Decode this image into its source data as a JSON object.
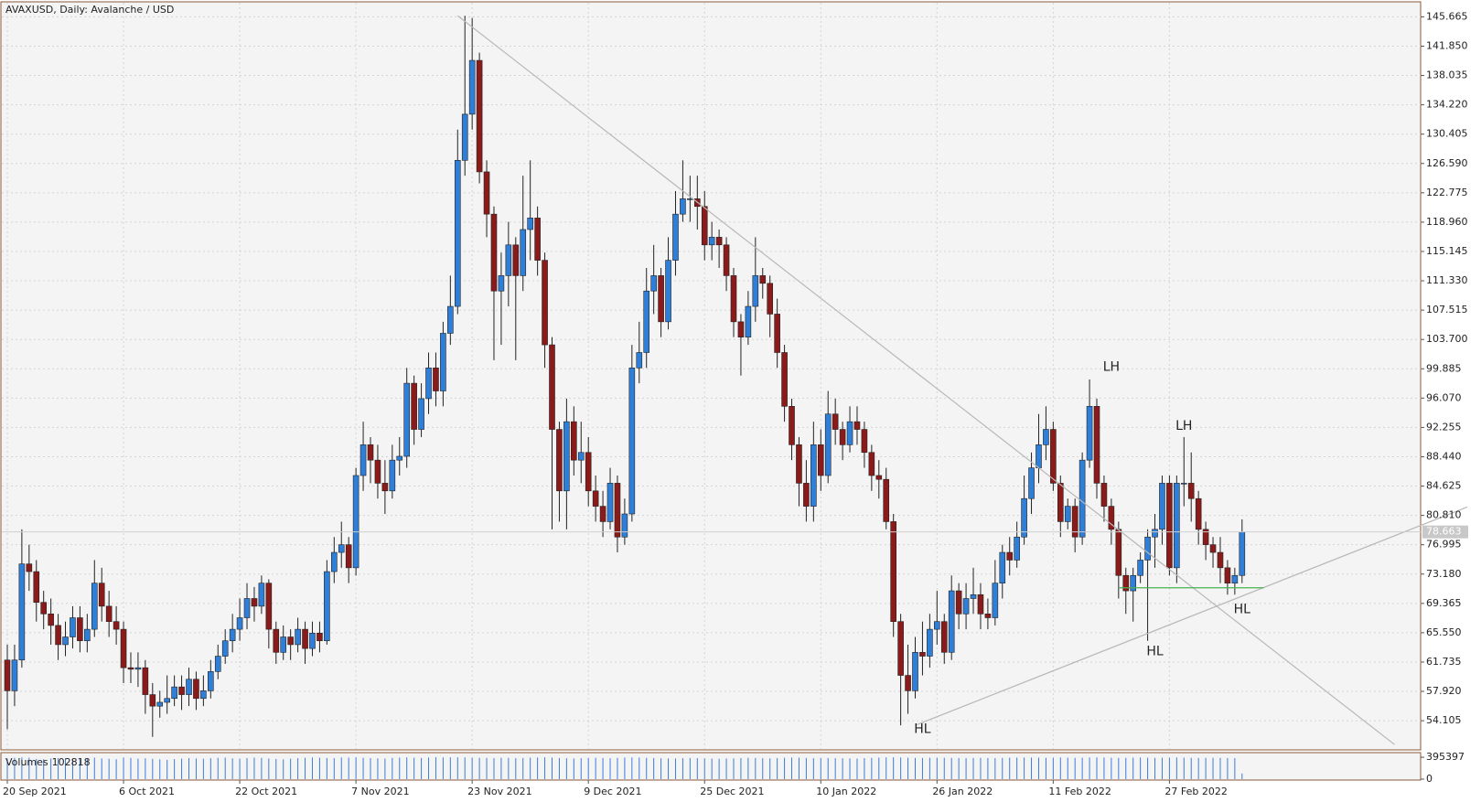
{
  "chart_data": {
    "type": "candlestick",
    "title": "AVAXUSD, Daily:  Avalanche / USD",
    "x": [
      "2021-09-20",
      "2021-09-21",
      "2021-09-22",
      "2021-09-23",
      "2021-09-24",
      "2021-09-25",
      "2021-09-26",
      "2021-09-27",
      "2021-09-28",
      "2021-09-29",
      "2021-09-30",
      "2021-10-01",
      "2021-10-02",
      "2021-10-03",
      "2021-10-04",
      "2021-10-05",
      "2021-10-06",
      "2021-10-07",
      "2021-10-08",
      "2021-10-09",
      "2021-10-10",
      "2021-10-11",
      "2021-10-12",
      "2021-10-13",
      "2021-10-14",
      "2021-10-15",
      "2021-10-16",
      "2021-10-17",
      "2021-10-18",
      "2021-10-19",
      "2021-10-20",
      "2021-10-21",
      "2021-10-22",
      "2021-10-23",
      "2021-10-24",
      "2021-10-25",
      "2021-10-26",
      "2021-10-27",
      "2021-10-28",
      "2021-10-29",
      "2021-10-30",
      "2021-10-31",
      "2021-11-01",
      "2021-11-02",
      "2021-11-03",
      "2021-11-04",
      "2021-11-05",
      "2021-11-06",
      "2021-11-07",
      "2021-11-08",
      "2021-11-09",
      "2021-11-10",
      "2021-11-11",
      "2021-11-12",
      "2021-11-13",
      "2021-11-14",
      "2021-11-15",
      "2021-11-16",
      "2021-11-17",
      "2021-11-18",
      "2021-11-19",
      "2021-11-20",
      "2021-11-21",
      "2021-11-22",
      "2021-11-23",
      "2021-11-24",
      "2021-11-25",
      "2021-11-26",
      "2021-11-27",
      "2021-11-28",
      "2021-11-29",
      "2021-11-30",
      "2021-12-01",
      "2021-12-02",
      "2021-12-03",
      "2021-12-04",
      "2021-12-05",
      "2021-12-06",
      "2021-12-07",
      "2021-12-08",
      "2021-12-09",
      "2021-12-10",
      "2021-12-11",
      "2021-12-12",
      "2021-12-13",
      "2021-12-14",
      "2021-12-15",
      "2021-12-16",
      "2021-12-17",
      "2021-12-18",
      "2021-12-19",
      "2021-12-20",
      "2021-12-21",
      "2021-12-22",
      "2021-12-23",
      "2021-12-24",
      "2021-12-25",
      "2021-12-26",
      "2021-12-27",
      "2021-12-28",
      "2021-12-29",
      "2021-12-30",
      "2021-12-31",
      "2022-01-01",
      "2022-01-02",
      "2022-01-03",
      "2022-01-04",
      "2022-01-05",
      "2022-01-06",
      "2022-01-07",
      "2022-01-08",
      "2022-01-09",
      "2022-01-10",
      "2022-01-11",
      "2022-01-12",
      "2022-01-13",
      "2022-01-14",
      "2022-01-15",
      "2022-01-16",
      "2022-01-17",
      "2022-01-18",
      "2022-01-19",
      "2022-01-20",
      "2022-01-21",
      "2022-01-22",
      "2022-01-23",
      "2022-01-24",
      "2022-01-25",
      "2022-01-26",
      "2022-01-27",
      "2022-01-28",
      "2022-01-29",
      "2022-01-30",
      "2022-01-31",
      "2022-02-01",
      "2022-02-02",
      "2022-02-03",
      "2022-02-04",
      "2022-02-05",
      "2022-02-06",
      "2022-02-07",
      "2022-02-08",
      "2022-02-09",
      "2022-02-10",
      "2022-02-11",
      "2022-02-12",
      "2022-02-13",
      "2022-02-14",
      "2022-02-15",
      "2022-02-16",
      "2022-02-17",
      "2022-02-18",
      "2022-02-19",
      "2022-02-20",
      "2022-02-21",
      "2022-02-22",
      "2022-02-23",
      "2022-02-24",
      "2022-02-25",
      "2022-02-26",
      "2022-02-27",
      "2022-02-28",
      "2022-03-01",
      "2022-03-02",
      "2022-03-03",
      "2022-03-04",
      "2022-03-05",
      "2022-03-06",
      "2022-03-07",
      "2022-03-08",
      "2022-03-09"
    ],
    "open": [
      62,
      58,
      62,
      74.5,
      73.5,
      69.5,
      68,
      66.5,
      64,
      65,
      67.5,
      64.5,
      66,
      72,
      69,
      67,
      66,
      61,
      60.8,
      61,
      57.5,
      56,
      56.5,
      57,
      58.5,
      57.5,
      59.5,
      57,
      58,
      60.5,
      62.5,
      64.5,
      66,
      67.5,
      70,
      69,
      72,
      66,
      63,
      65,
      64,
      66,
      63.5,
      65.5,
      64.5,
      73.5,
      76,
      77,
      74,
      86,
      90,
      88,
      85,
      84,
      88,
      88.5,
      98,
      92,
      96,
      100,
      97,
      104.5,
      108,
      127,
      133,
      140,
      125.5,
      120,
      110,
      112,
      116,
      112,
      118,
      119.5,
      114,
      103,
      92,
      84,
      93,
      88,
      89,
      84,
      82,
      80,
      85,
      78,
      81,
      100,
      102,
      110,
      112,
      106,
      114,
      120,
      122,
      122,
      121,
      116,
      117,
      116,
      112,
      106,
      104,
      108,
      112,
      111,
      107,
      102,
      95,
      90,
      85,
      82,
      90,
      86,
      94,
      92,
      90,
      93,
      92,
      89,
      86,
      85.5,
      80,
      67,
      60,
      58,
      63,
      62.5,
      66,
      67,
      63,
      71,
      68,
      70,
      70.5,
      68,
      67.5,
      72,
      76,
      75,
      78,
      83,
      87,
      90,
      92,
      85,
      80,
      82,
      78,
      88,
      95,
      85,
      82,
      79,
      73,
      71,
      73,
      75,
      78,
      79,
      85,
      74,
      85,
      85,
      83,
      79,
      77,
      76,
      74,
      72,
      73
    ],
    "high": [
      64,
      64,
      79,
      77,
      75,
      71,
      70,
      68,
      67,
      69,
      69,
      68,
      75,
      74,
      71,
      69,
      67,
      63,
      63,
      62,
      59,
      58,
      60,
      60,
      60,
      61,
      60.5,
      60,
      62,
      64,
      66,
      68,
      70,
      72,
      71.5,
      73,
      72.5,
      67,
      66.5,
      66,
      67.5,
      67,
      67,
      67,
      75,
      78,
      80,
      78,
      87,
      93,
      91,
      90,
      88,
      90,
      91,
      100,
      99,
      98,
      102,
      102,
      106,
      112,
      131,
      145.8,
      145.5,
      141,
      127,
      121,
      115,
      119,
      117,
      125,
      127,
      121,
      115,
      104,
      93,
      96,
      95,
      93,
      91,
      86,
      84,
      87,
      86,
      83,
      103,
      106,
      113,
      116,
      113,
      117,
      123,
      127,
      125,
      125,
      123,
      119,
      118,
      117,
      113,
      107,
      110,
      117,
      113,
      112,
      109,
      103,
      96,
      91,
      88,
      93,
      92,
      97,
      96,
      93,
      95,
      95,
      93,
      90,
      88,
      87,
      81,
      68,
      64,
      65,
      67,
      68,
      71,
      68,
      73,
      72,
      72,
      74,
      72,
      70,
      75,
      77,
      78,
      80,
      86,
      89,
      94,
      95,
      93,
      86,
      83,
      83,
      89,
      98.5,
      96,
      86,
      83,
      80,
      74,
      74,
      76,
      79,
      81,
      86,
      86,
      86,
      91,
      89,
      84,
      80,
      78,
      78,
      75,
      74,
      80.3
    ],
    "low": [
      53,
      56,
      61,
      71,
      67,
      66,
      64,
      62,
      62.5,
      63.5,
      63,
      63,
      65,
      67,
      65,
      64,
      59,
      59,
      58.5,
      55,
      52,
      54.5,
      55,
      56,
      55.5,
      56,
      55.5,
      56,
      57,
      59.5,
      61.5,
      63,
      64.5,
      66,
      67,
      68,
      63.5,
      61.5,
      62,
      62,
      63,
      61.5,
      62.5,
      63,
      64,
      72,
      74,
      72,
      73,
      84,
      85,
      83,
      81,
      83,
      86,
      87,
      90,
      91,
      94,
      95,
      95,
      103,
      107,
      125,
      131,
      124,
      117,
      101,
      103,
      108,
      101,
      110,
      114,
      112,
      100,
      79,
      80,
      79,
      86,
      85,
      82,
      80,
      78,
      79,
      76,
      77,
      80,
      98,
      100,
      107,
      104,
      105,
      112,
      119,
      119,
      118,
      114,
      114,
      113,
      110,
      104,
      99,
      103,
      106,
      109,
      104,
      100,
      93,
      88,
      82,
      80,
      80,
      84,
      85,
      90,
      88,
      89,
      90,
      87,
      84,
      83,
      79,
      65,
      53.5,
      55,
      57,
      60,
      61,
      64,
      61.5,
      62,
      66,
      66,
      68,
      66,
      66,
      66.5,
      70,
      73,
      74,
      77,
      81,
      85,
      88,
      84,
      78,
      79,
      76,
      77,
      87,
      83,
      80,
      77,
      70,
      68,
      67,
      72,
      64.5,
      74,
      77,
      73,
      72,
      82,
      80,
      77,
      75,
      74,
      72,
      70.5,
      70.5,
      72
    ],
    "close": [
      58,
      62,
      74.5,
      73.5,
      69.5,
      68,
      66.5,
      64,
      65,
      67.5,
      64.5,
      66,
      72,
      69,
      67,
      66,
      61,
      60.8,
      61,
      57.5,
      56,
      56.5,
      57,
      58.5,
      57.5,
      59.5,
      57,
      58,
      60.5,
      62.5,
      64.5,
      66,
      67.5,
      70,
      69,
      72,
      66,
      63,
      65,
      64,
      66,
      63.5,
      65.5,
      64.5,
      73.5,
      76,
      77,
      74,
      86,
      90,
      88,
      85,
      84,
      88,
      88.5,
      98,
      92,
      96,
      100,
      97,
      104.5,
      108,
      127,
      133,
      140,
      125.5,
      120,
      110,
      112,
      116,
      112,
      118,
      119.5,
      114,
      103,
      92,
      84,
      93,
      88,
      89,
      84,
      82,
      80,
      85,
      78,
      81,
      100,
      102,
      110,
      112,
      106,
      114,
      120,
      122,
      122,
      121,
      116,
      117,
      116,
      112,
      106,
      104,
      108,
      112,
      111,
      107,
      102,
      95,
      90,
      85,
      82,
      90,
      86,
      94,
      92,
      90,
      93,
      92,
      89,
      86,
      85.5,
      80,
      67,
      60,
      58,
      63,
      62.5,
      66,
      67,
      63,
      71,
      68,
      70,
      70.5,
      68,
      67.5,
      72,
      76,
      75,
      78,
      83,
      87,
      90,
      92,
      85,
      80,
      82,
      78,
      88,
      95,
      85,
      82,
      79,
      73,
      71,
      73,
      75,
      78,
      79,
      85,
      74,
      85,
      85,
      83,
      79,
      77,
      76,
      74,
      72,
      73,
      78.663
    ],
    "up_color": "#2f7fd8",
    "down_color": "#8b1a1a",
    "ylim": [
      50.43,
      147.38
    ],
    "yticks": [
      145.665,
      {
        "value": 141.85,
        "label": "141.850"
      },
      138.035,
      {
        "value": 134.22,
        "label": "134.220"
      },
      130.405,
      {
        "value": 126.59,
        "label": "126.590"
      },
      122.775,
      {
        "value": 118.96,
        "label": "118.960"
      },
      115.145,
      {
        "value": 111.33,
        "label": "111.330"
      },
      107.515,
      {
        "value": 103.7,
        "label": "103.700"
      },
      99.885,
      {
        "value": 96.07,
        "label": "96.070"
      },
      92.255,
      {
        "value": 88.44,
        "label": "88.440"
      },
      84.625,
      {
        "value": 80.81,
        "label": "80.810"
      },
      76.995,
      {
        "value": 73.18,
        "label": "73.180"
      },
      69.365,
      {
        "value": 65.55,
        "label": "65.550"
      },
      61.735,
      {
        "value": 57.92,
        "label": "57.920"
      },
      54.105
    ],
    "xticks": [
      {
        "value": "2021-09-20",
        "label": "20 Sep 2021"
      },
      {
        "value": "2021-10-06",
        "label": "6 Oct 2021"
      },
      {
        "value": "2021-10-22",
        "label": "22 Oct 2021"
      },
      {
        "value": "2021-11-07",
        "label": "7 Nov 2021"
      },
      {
        "value": "2021-11-23",
        "label": "23 Nov 2021"
      },
      {
        "value": "2021-12-09",
        "label": "9 Dec 2021"
      },
      {
        "value": "2021-12-25",
        "label": "25 Dec 2021"
      },
      {
        "value": "2022-01-10",
        "label": "10 Jan 2022"
      },
      {
        "value": "2022-01-26",
        "label": "26 Jan 2022"
      },
      {
        "value": "2022-02-11",
        "label": "11 Feb 2022"
      },
      {
        "value": "2022-02-27",
        "label": "27 Feb 2022"
      }
    ],
    "grid": true,
    "volume_name": "Volumes",
    "volume_color": "#3b7dd8",
    "volumes": [
      371200,
      384500,
      392100,
      388300,
      365400,
      359800,
      372600,
      381000,
      376400,
      369900,
      355300,
      362800,
      388900,
      374500,
      368100,
      360200,
      391400,
      383700,
      370500,
      377800,
      366900,
      358400,
      349700,
      362300,
      371800,
      380600,
      374100,
      368900,
      379300,
      385200,
      388700,
      376300,
      369500,
      381900,
      390200,
      384600,
      372800,
      365100,
      359600,
      370400,
      378900,
      386300,
      391800,
      387500,
      383100,
      379600,
      392400,
      388100,
      394200,
      386700,
      381300,
      375900,
      372200,
      384800,
      389600,
      393100,
      387400,
      382600,
      390800,
      395397,
      391500,
      393800,
      394600,
      392200,
      389900,
      385300,
      383700,
      380200,
      386900,
      384400,
      379800,
      382500,
      388300,
      391200,
      393500,
      389700,
      381400,
      377900,
      374300,
      379100,
      384600,
      386200,
      381700,
      378500,
      383900,
      389400,
      392700,
      390300,
      386100,
      381800,
      377400,
      375200,
      372900,
      378600,
      382300,
      380100,
      376700,
      371500,
      368200,
      373800,
      377200,
      381900,
      385600,
      383300,
      379700,
      376400,
      380800,
      386500,
      390100,
      387800,
      382700,
      379300,
      384200,
      381600,
      378100,
      376900,
      374500,
      372300,
      379800,
      385400,
      389300,
      393700,
      394900,
      391100,
      387600,
      384300,
      382100,
      385900,
      388400,
      386300,
      383500,
      380900,
      378700,
      382600,
      385100,
      381300,
      379200,
      383800,
      387200,
      389800,
      391600,
      390400,
      388200,
      385700,
      389100,
      392300,
      388600,
      384900,
      387300,
      391900,
      393200,
      390600,
      386800,
      383200,
      385500,
      388900,
      390700,
      387600,
      384100,
      386400,
      389500,
      391300,
      388800,
      385200,
      382900,
      384700,
      386100,
      383400,
      381200,
      379600,
      102818
    ],
    "vlim": [
      0,
      430000
    ],
    "vticks": [
      395397,
      0
    ],
    "lines": [
      {
        "x": [
          "2021-11-21",
          "2022-03-30"
        ],
        "y": [
          145.8,
          51.0
        ],
        "color": "#b8b8b8"
      },
      {
        "x": [
          "2022-01-23",
          "2022-04-09"
        ],
        "y": [
          53.5,
          81.9
        ],
        "color": "#b8b8b8"
      },
      {
        "x": [
          "2022-02-20",
          "2022-03-12"
        ],
        "y": [
          71.4,
          71.4
        ],
        "color": "#4caf50"
      }
    ],
    "annotations": [
      {
        "text": "LH",
        "x": "2022-02-19",
        "y": 100.1
      },
      {
        "text": "LH",
        "x": "2022-03-01",
        "y": 92.4
      },
      {
        "text": "HL",
        "x": "2022-01-24",
        "y": 53.0
      },
      {
        "text": "HL",
        "x": "2022-02-25",
        "y": 63.1
      },
      {
        "text": "HL",
        "x": "2022-03-09",
        "y": 68.6
      }
    ]
  }
}
